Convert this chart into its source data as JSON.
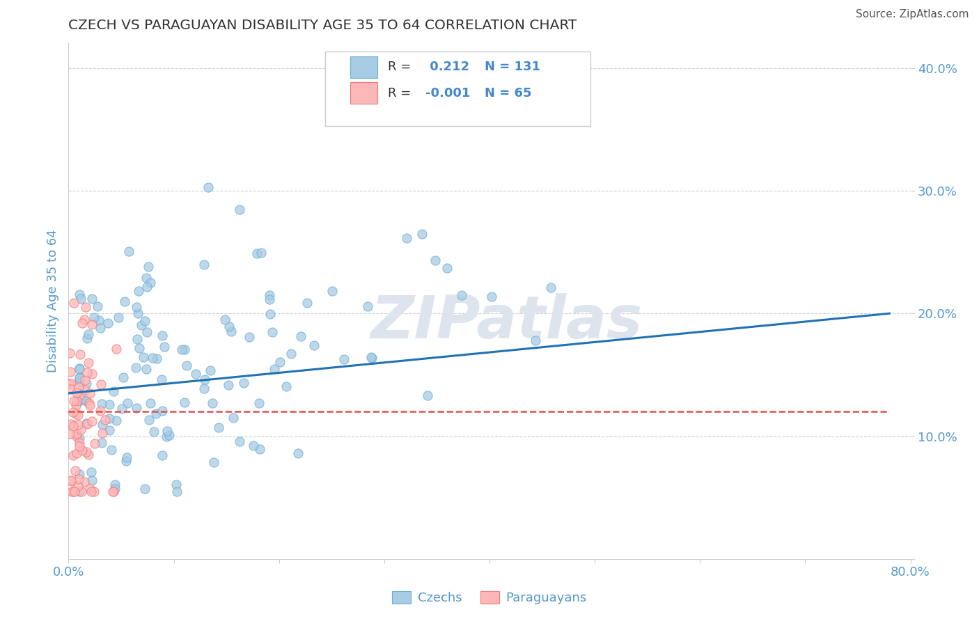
{
  "title": "CZECH VS PARAGUAYAN DISABILITY AGE 35 TO 64 CORRELATION CHART",
  "source": "Source: ZipAtlas.com",
  "ylabel": "Disability Age 35 to 64",
  "xlim": [
    0.0,
    0.8
  ],
  "ylim": [
    0.0,
    0.42
  ],
  "czech_R": 0.212,
  "czech_N": 131,
  "para_R": -0.001,
  "para_N": 65,
  "czech_color": "#a8cce4",
  "czech_edge_color": "#6baed6",
  "para_color": "#fcb8b8",
  "para_edge_color": "#f87878",
  "trend_czech_color": "#2171b5",
  "trend_para_color": "#e05050",
  "background_color": "#ffffff",
  "grid_color": "#bbbbbb",
  "text_blue": "#4488cc",
  "text_dark": "#333333",
  "axis_label_color": "#5599cc",
  "watermark_color": "#dde4ee",
  "legend_border_color": "#cccccc",
  "czech_trend_start_y": 0.135,
  "czech_trend_end_y": 0.2,
  "para_trend_y": 0.12
}
